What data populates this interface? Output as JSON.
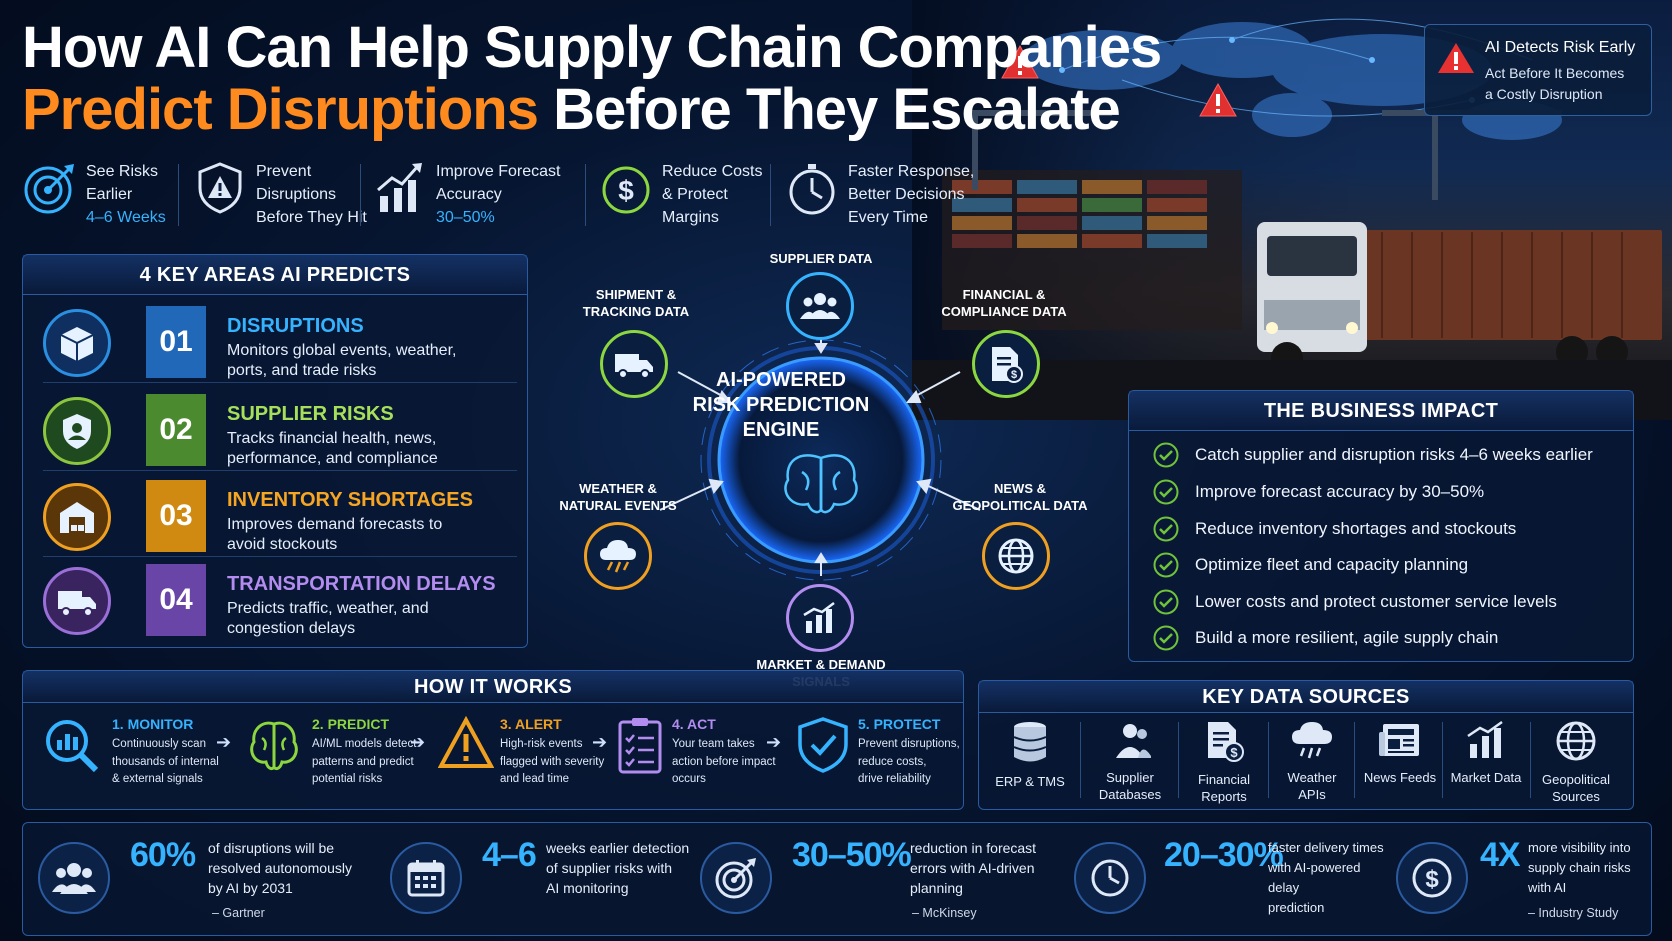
{
  "header": {
    "title_line1": "How AI Can Help Supply Chain Companies",
    "title_line2_accent": "Predict Disruptions",
    "title_line2_rest": " Before They Escalate"
  },
  "callout": {
    "title": "AI Detects Risk Early",
    "line1": "Act Before It Becomes",
    "line2": "a Costly Disruption"
  },
  "benefits": [
    {
      "l1": "See Risks",
      "l2": "Earlier",
      "l3": "4–6 Weeks",
      "icon": "target-icon"
    },
    {
      "l1": "Prevent",
      "l2": "Disruptions",
      "l3": "Before They Hit",
      "icon": "warning-shield-icon"
    },
    {
      "l1": "Improve Forecast",
      "l2": "Accuracy",
      "l3": "30–50%",
      "icon": "growth-chart-icon"
    },
    {
      "l1": "Reduce Costs",
      "l2": "& Protect",
      "l3": "Margins",
      "icon": "dollar-icon"
    },
    {
      "l1": "Faster Response,",
      "l2": "Better Decisions",
      "l3": "Every Time",
      "icon": "stopwatch-icon"
    }
  ],
  "areas": {
    "title": "4 KEY AREAS AI PREDICTS",
    "items": [
      {
        "num": "01",
        "title": "DISRUPTIONS",
        "d1": "Monitors global events, weather,",
        "d2": "ports, and trade risks",
        "color": "#2a8fe0",
        "icon": "box-icon"
      },
      {
        "num": "02",
        "title": "SUPPLIER RISKS",
        "d1": "Tracks financial health, news,",
        "d2": "performance, and compliance",
        "color": "#8cc63f",
        "icon": "supplier-shield-icon"
      },
      {
        "num": "03",
        "title": "INVENTORY SHORTAGES",
        "d1": "Improves demand forecasts to",
        "d2": "avoid stockouts",
        "color": "#f0a020",
        "icon": "warehouse-icon"
      },
      {
        "num": "04",
        "title": "TRANSPORTATION DELAYS",
        "d1": " Predicts traffic, weather, and",
        "d2": "congestion delays",
        "color": "#9b6fd8",
        "icon": "truck-icon"
      }
    ]
  },
  "engine": {
    "title_l1": "AI-POWERED",
    "title_l2": "RISK PREDICTION",
    "title_l3": "ENGINE",
    "sources": {
      "supplier": "SUPPLIER DATA",
      "shipment_l1": "SHIPMENT &",
      "shipment_l2": "TRACKING DATA",
      "financial_l1": "FINANCIAL &",
      "financial_l2": "COMPLIANCE DATA",
      "weather_l1": "WEATHER &",
      "weather_l2": "NATURAL EVENTS",
      "news_l1": "NEWS &",
      "news_l2": "GEOPOLITICAL DATA",
      "market": "MARKET & DEMAND SIGNALS"
    }
  },
  "impact": {
    "title": "THE BUSINESS IMPACT",
    "items": [
      "Catch supplier and disruption risks 4–6 weeks earlier",
      "Improve forecast accuracy by 30–50%",
      "Reduce inventory shortages and stockouts",
      "Optimize fleet and capacity planning",
      "Lower costs and protect customer service levels",
      "Build a more resilient, agile supply chain"
    ]
  },
  "how": {
    "title": "HOW IT WORKS",
    "steps": [
      {
        "title": "1. MONITOR",
        "d1": "Continuously scan",
        "d2": "thousands of internal",
        "d3": "& external signals",
        "color": "#36b3ff"
      },
      {
        "title": "2. PREDICT",
        "d1": "AI/ML models detect",
        "d2": "patterns and predict",
        "d3": "potential risks",
        "color": "#8cd63f"
      },
      {
        "title": "3. ALERT",
        "d1": "High-risk events",
        "d2": "flagged with severity",
        "d3": "and lead time",
        "color": "#f0a020"
      },
      {
        "title": "4. ACT",
        "d1": "Your team takes",
        "d2": "action before impact",
        "d3": "occurs",
        "color": "#b38cf0"
      },
      {
        "title": "5. PROTECT",
        "d1": "Prevent disruptions,",
        "d2": "reduce costs,",
        "d3": "drive reliability",
        "color": "#36b3ff"
      }
    ]
  },
  "sources": {
    "title": "KEY DATA SOURCES",
    "items": [
      {
        "l1": "ERP & TMS",
        "l2": "",
        "icon": "database-icon"
      },
      {
        "l1": "Supplier",
        "l2": "Databases",
        "icon": "people-icon"
      },
      {
        "l1": "Financial",
        "l2": "Reports",
        "icon": "report-dollar-icon"
      },
      {
        "l1": "Weather",
        "l2": "APIs",
        "icon": "cloud-icon"
      },
      {
        "l1": "News Feeds",
        "l2": "",
        "icon": "newspaper-icon"
      },
      {
        "l1": "Market Data",
        "l2": "",
        "icon": "bar-chart-icon"
      },
      {
        "l1": "Geopolitical",
        "l2": "Sources",
        "icon": "globe-icon"
      }
    ]
  },
  "stats": [
    {
      "num": "60%",
      "d1": "of disruptions will be",
      "d2": "resolved autonomously",
      "d3": "by AI by 2031",
      "src": "– Gartner",
      "icon": "people-icon"
    },
    {
      "num": "4–6",
      "d1": "weeks earlier detection",
      "d2": "of supplier risks with",
      "d3": "AI monitoring",
      "src": "",
      "icon": "calendar-icon"
    },
    {
      "num": "30–50%",
      "d1": "reduction in forecast",
      "d2": "errors with AI-driven",
      "d3": "planning",
      "src": "– McKinsey",
      "icon": "target-icon"
    },
    {
      "num": "20–30%",
      "d1": "faster delivery times",
      "d2": "with AI-powered delay",
      "d3": "prediction",
      "src": "",
      "icon": "clock-icon"
    },
    {
      "num": "4X",
      "d1": "more visibility into",
      "d2": "supply chain risks",
      "d3": "with AI",
      "src": "– Industry Study",
      "icon": "dollar-icon"
    }
  ],
  "colors": {
    "accent_orange": "#ff8a1e",
    "accent_blue": "#36b3ff",
    "panel_border": "#2a5aa0",
    "check_green": "#6fc23a"
  }
}
